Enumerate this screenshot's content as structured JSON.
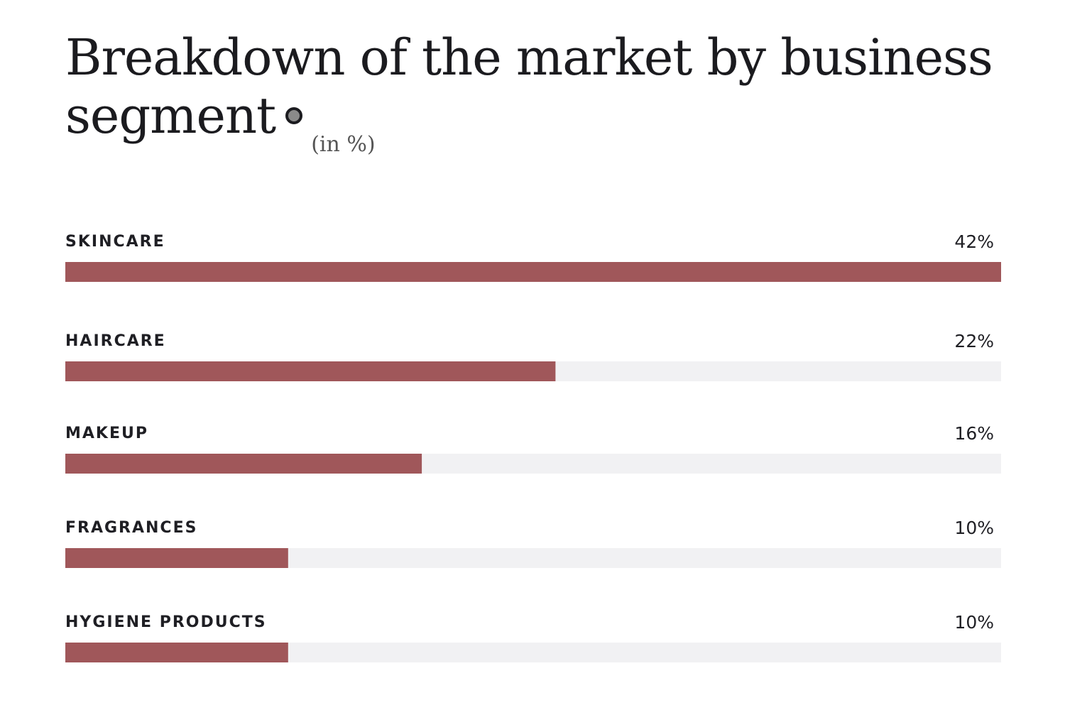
{
  "chart_data": {
    "type": "bar",
    "orientation": "horizontal",
    "title": "Breakdown of the market by business segment",
    "unit_label": "(in %)",
    "categories": [
      "SKINCARE",
      "HAIRCARE",
      "MAKEUP",
      "FRAGRANCES",
      "HYGIENE PRODUCTS"
    ],
    "values": [
      42,
      22,
      16,
      10,
      10
    ],
    "value_labels": [
      "42%",
      "22%",
      "16%",
      "10%",
      "10%"
    ],
    "xlim": [
      0,
      42
    ],
    "grid": false,
    "legend": "none",
    "bar_color": "#a0575a",
    "track_color": "#f1f1f3"
  }
}
